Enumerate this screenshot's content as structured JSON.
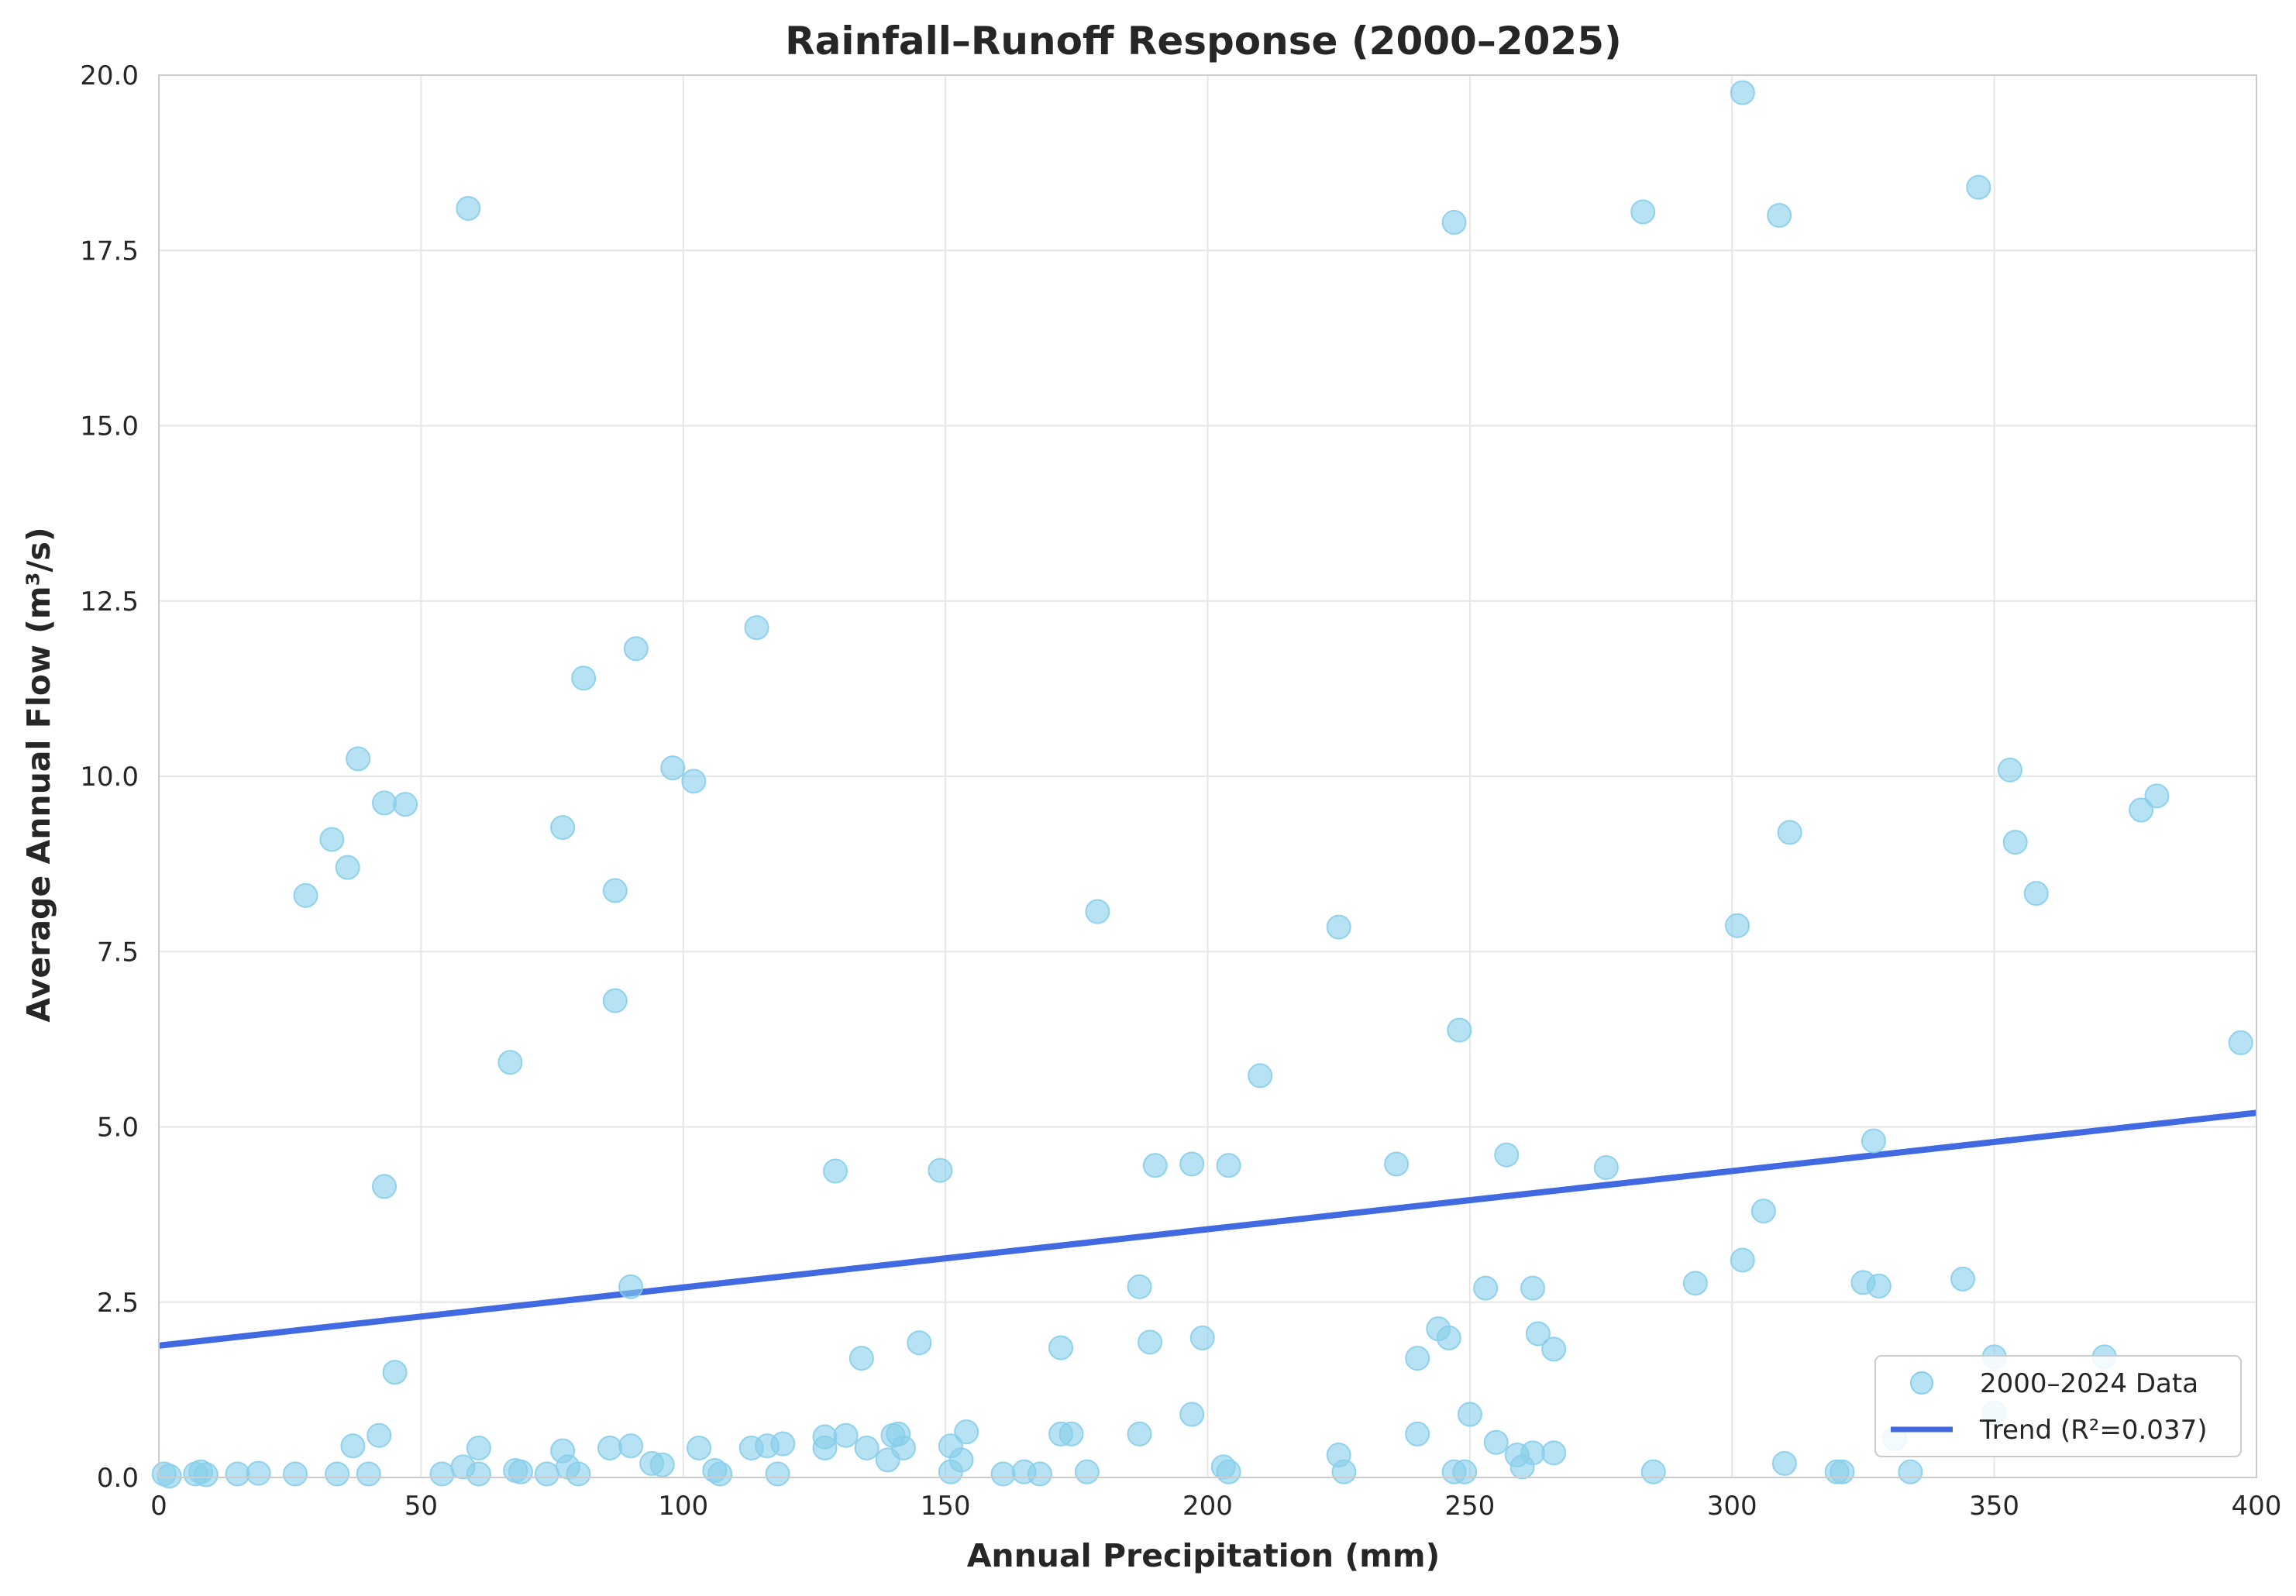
{
  "chart_data": {
    "type": "scatter",
    "title": "Rainfall–Runoff Response (2000–2025)",
    "xlabel": "Annual Precipitation (mm)",
    "ylabel": "Average Annual Flow (m³/s)",
    "xlim": [
      0,
      400
    ],
    "ylim": [
      0,
      20
    ],
    "x_ticks": [
      "0",
      "50",
      "100",
      "150",
      "200",
      "250",
      "300",
      "350",
      "400"
    ],
    "y_ticks": [
      "0.0",
      "2.5",
      "5.0",
      "7.5",
      "10.0",
      "12.5",
      "15.0",
      "17.5",
      "20.0"
    ],
    "grid": true,
    "legend_position": "lower-right",
    "colors": {
      "points": "#87CEEB",
      "trend": "#4169E1",
      "grid": "#e6e6e6",
      "axes": "#cccccc"
    },
    "series": [
      {
        "name": "2000–2024 Data",
        "kind": "scatter",
        "points": [
          [
            1,
            0.05
          ],
          [
            2,
            0.02
          ],
          [
            7,
            0.05
          ],
          [
            8,
            0.08
          ],
          [
            9,
            0.04
          ],
          [
            15,
            0.05
          ],
          [
            19,
            0.06
          ],
          [
            26,
            0.05
          ],
          [
            28,
            8.3
          ],
          [
            33,
            9.1
          ],
          [
            34,
            0.05
          ],
          [
            36,
            8.7
          ],
          [
            37,
            0.45
          ],
          [
            38,
            10.25
          ],
          [
            40,
            0.05
          ],
          [
            42,
            0.6
          ],
          [
            43,
            9.62
          ],
          [
            43,
            4.15
          ],
          [
            45,
            1.5
          ],
          [
            47,
            9.6
          ],
          [
            54,
            0.05
          ],
          [
            58,
            0.15
          ],
          [
            59,
            18.1
          ],
          [
            61,
            0.42
          ],
          [
            61,
            0.05
          ],
          [
            67,
            5.92
          ],
          [
            68,
            0.1
          ],
          [
            69,
            0.08
          ],
          [
            74,
            0.05
          ],
          [
            77,
            9.27
          ],
          [
            77,
            0.38
          ],
          [
            78,
            0.15
          ],
          [
            80,
            0.05
          ],
          [
            81,
            11.4
          ],
          [
            86,
            0.42
          ],
          [
            87,
            8.37
          ],
          [
            87,
            6.8
          ],
          [
            90,
            2.72
          ],
          [
            90,
            0.45
          ],
          [
            91,
            11.82
          ],
          [
            94,
            0.2
          ],
          [
            96,
            0.18
          ],
          [
            98,
            10.12
          ],
          [
            102,
            9.93
          ],
          [
            103,
            0.42
          ],
          [
            106,
            0.1
          ],
          [
            107,
            0.05
          ],
          [
            113,
            0.42
          ],
          [
            114,
            12.12
          ],
          [
            116,
            0.45
          ],
          [
            118,
            0.05
          ],
          [
            119,
            0.48
          ],
          [
            127,
            0.58
          ],
          [
            127,
            0.42
          ],
          [
            129,
            4.37
          ],
          [
            131,
            0.6
          ],
          [
            134,
            1.7
          ],
          [
            135,
            0.42
          ],
          [
            139,
            0.25
          ],
          [
            140,
            0.6
          ],
          [
            141,
            0.62
          ],
          [
            142,
            0.42
          ],
          [
            145,
            1.92
          ],
          [
            149,
            4.38
          ],
          [
            151,
            0.45
          ],
          [
            151,
            0.08
          ],
          [
            153,
            0.25
          ],
          [
            154,
            0.65
          ],
          [
            161,
            0.05
          ],
          [
            165,
            0.08
          ],
          [
            168,
            0.05
          ],
          [
            172,
            1.85
          ],
          [
            172,
            0.62
          ],
          [
            174,
            0.62
          ],
          [
            177,
            0.08
          ],
          [
            179,
            8.07
          ],
          [
            187,
            2.72
          ],
          [
            187,
            0.62
          ],
          [
            189,
            1.93
          ],
          [
            190,
            4.45
          ],
          [
            197,
            4.47
          ],
          [
            197,
            0.9
          ],
          [
            199,
            1.99
          ],
          [
            203,
            0.15
          ],
          [
            204,
            4.45
          ],
          [
            204,
            0.08
          ],
          [
            210,
            5.73
          ],
          [
            225,
            7.85
          ],
          [
            225,
            0.32
          ],
          [
            226,
            0.08
          ],
          [
            236,
            4.47
          ],
          [
            240,
            1.7
          ],
          [
            240,
            0.62
          ],
          [
            244,
            2.12
          ],
          [
            246,
            1.99
          ],
          [
            247,
            17.9
          ],
          [
            247,
            0.08
          ],
          [
            248,
            6.38
          ],
          [
            249,
            0.08
          ],
          [
            250,
            0.9
          ],
          [
            253,
            2.7
          ],
          [
            255,
            0.5
          ],
          [
            257,
            4.6
          ],
          [
            259,
            0.32
          ],
          [
            260,
            0.15
          ],
          [
            262,
            2.7
          ],
          [
            262,
            0.35
          ],
          [
            263,
            2.05
          ],
          [
            266,
            1.83
          ],
          [
            266,
            0.35
          ],
          [
            276,
            4.42
          ],
          [
            283,
            18.05
          ],
          [
            285,
            0.08
          ],
          [
            293,
            2.77
          ],
          [
            301,
            7.87
          ],
          [
            302,
            19.75
          ],
          [
            302,
            3.1
          ],
          [
            306,
            3.8
          ],
          [
            309,
            18.0
          ],
          [
            310,
            0.2
          ],
          [
            311,
            9.2
          ],
          [
            320,
            0.08
          ],
          [
            321,
            0.08
          ],
          [
            325,
            2.78
          ],
          [
            327,
            4.8
          ],
          [
            328,
            2.73
          ],
          [
            331,
            0.55
          ],
          [
            334,
            0.08
          ],
          [
            344,
            2.83
          ],
          [
            347,
            18.4
          ],
          [
            350,
            1.72
          ],
          [
            350,
            0.92
          ],
          [
            353,
            10.09
          ],
          [
            354,
            9.06
          ],
          [
            358,
            8.33
          ],
          [
            371,
            1.72
          ],
          [
            378,
            9.52
          ],
          [
            381,
            9.72
          ],
          [
            397,
            6.2
          ]
        ]
      },
      {
        "name": "Trend (R²=0.037)",
        "kind": "line",
        "x": [
          0,
          400
        ],
        "y": [
          1.88,
          5.2
        ]
      }
    ]
  }
}
